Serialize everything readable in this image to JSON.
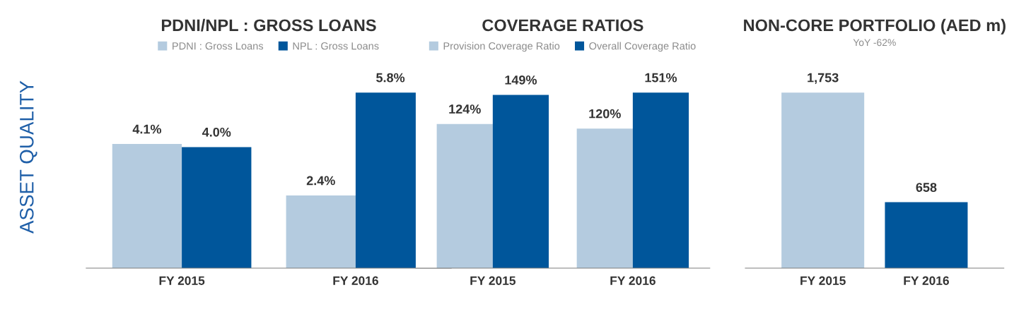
{
  "chart_data": [
    {
      "type": "bar",
      "title": "PDNI/NPL : GROSS LOANS",
      "categories": [
        "FY 2015",
        "FY 2016"
      ],
      "annotations": [
        "ASSET QUALITY"
      ],
      "legend": "top",
      "grid": false,
      "series": [
        {
          "name": "PDNI : Gross Loans",
          "color": "#b4cbdf",
          "values": [
            4.1,
            2.4
          ],
          "value_labels": [
            "4.1%",
            "2.4%"
          ]
        },
        {
          "name": "NPL : Gross Loans",
          "color": "#00569b",
          "values": [
            4.0,
            5.8
          ],
          "value_labels": [
            "4.0%",
            "5.8%"
          ]
        }
      ]
    },
    {
      "type": "bar",
      "title": "COVERAGE RATIOS",
      "categories": [
        "FY 2015",
        "FY 2016"
      ],
      "legend": "top",
      "grid": false,
      "series": [
        {
          "name": "Provision Coverage Ratio",
          "color": "#b4cbdf",
          "values": [
            124,
            120
          ],
          "value_labels": [
            "124%",
            "120%"
          ]
        },
        {
          "name": "Overall Coverage Ratio",
          "color": "#00569b",
          "values": [
            149,
            151
          ],
          "value_labels": [
            "149%",
            "151%"
          ]
        }
      ]
    },
    {
      "type": "bar",
      "title": "NON-CORE PORTFOLIO (AED m)",
      "subtitle": "YoY -62%",
      "categories": [
        "FY 2015",
        "FY 2016"
      ],
      "legend": false,
      "grid": false,
      "series": [
        {
          "colors": [
            "#b4cbdf",
            "#00569b"
          ],
          "values": [
            1753,
            658
          ],
          "value_labels": [
            "1,753",
            "658"
          ]
        }
      ]
    }
  ]
}
